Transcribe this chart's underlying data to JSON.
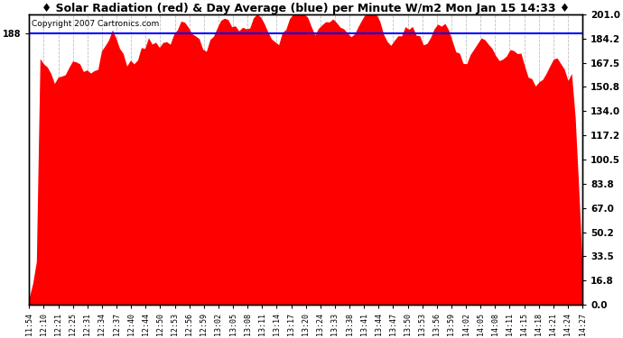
{
  "title": "♦ Solar Radiation (red) & Day Average (blue) per Minute W/m2 Mon Jan 15 14:33 ♦",
  "copyright": "Copyright 2007 Cartronics.com",
  "y_right_ticks": [
    0.0,
    16.8,
    33.5,
    50.2,
    67.0,
    83.8,
    100.5,
    117.2,
    134.0,
    150.8,
    167.5,
    184.2,
    201.0
  ],
  "y_left_label": "188",
  "blue_line_y": 188.0,
  "y_max": 201.0,
  "y_min": 0.0,
  "bar_color": "#ff0000",
  "line_color": "#0000ff",
  "bg_color": "#ffffff",
  "grid_color": "#c0c0c0",
  "title_fontsize": 9,
  "copyright_fontsize": 6.5,
  "x_labels": [
    "11:54",
    "12:10",
    "12:21",
    "12:25",
    "12:31",
    "12:34",
    "12:37",
    "12:40",
    "12:44",
    "12:50",
    "12:53",
    "12:56",
    "12:59",
    "13:02",
    "13:05",
    "13:08",
    "13:11",
    "13:14",
    "13:17",
    "13:20",
    "13:24",
    "13:33",
    "13:38",
    "13:41",
    "13:44",
    "13:47",
    "13:50",
    "13:53",
    "13:56",
    "13:59",
    "14:02",
    "14:05",
    "14:08",
    "14:11",
    "14:15",
    "14:18",
    "14:21",
    "14:24",
    "14:27"
  ],
  "n_points": 154,
  "base_value": 188.0,
  "seed": 7
}
